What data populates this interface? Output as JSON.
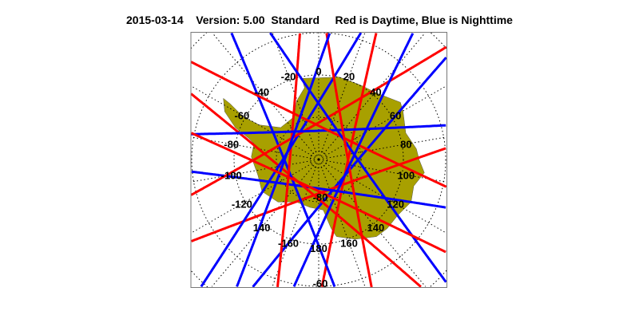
{
  "title": "2015-03-14    Version: 5.00  Standard     Red is Daytime, Blue is Nighttime",
  "map": {
    "projection": "south polar stereographic",
    "region": "Antarctica",
    "land_color": "#a8a000",
    "day_color": "#ff0000",
    "night_color": "#0000ff",
    "longitude_labels": [
      "0",
      "20",
      "40",
      "60",
      "80",
      "100",
      "120",
      "140",
      "160",
      "180",
      "-160",
      "140",
      "-120",
      "-100",
      "-80",
      "-60",
      "-40",
      "-20"
    ],
    "latitude_labels": [
      "-80",
      "-60"
    ]
  }
}
